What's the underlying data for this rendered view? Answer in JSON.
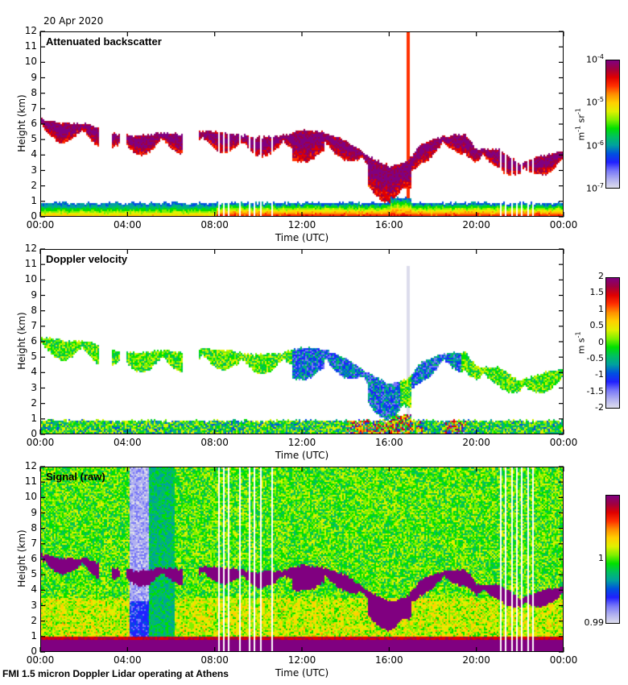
{
  "header": {
    "date": "20 Apr 2020"
  },
  "footer": {
    "caption": "FMI 1.5 micron Doppler Lidar operating at Athens"
  },
  "chart_data": [
    {
      "type": "heatmap",
      "title": "Attenuated backscatter",
      "xlabel": "Time (UTC)",
      "ylabel": "Height (km)",
      "xlim": [
        0,
        24
      ],
      "ylim": [
        0,
        12
      ],
      "xticks": [
        "00:00",
        "04:00",
        "08:00",
        "12:00",
        "16:00",
        "20:00",
        "00:00"
      ],
      "yticks": [
        "0",
        "1",
        "2",
        "3",
        "4",
        "5",
        "6",
        "7",
        "8",
        "9",
        "10",
        "11",
        "12"
      ],
      "colorbar": {
        "scale": "log",
        "range": [
          1e-07,
          0.0001
        ],
        "ticks": [
          {
            "base": "10",
            "exp": "-4"
          },
          {
            "base": "10",
            "exp": "-5"
          },
          {
            "base": "10",
            "exp": "-6"
          },
          {
            "base": "10",
            "exp": "-7"
          }
        ],
        "unit_base": "m",
        "unit_exp1": "-1",
        "unit_mid": " sr",
        "unit_exp2": "-1"
      },
      "cloud_top_km": [
        [
          0,
          6.4
        ],
        [
          1,
          6.1
        ],
        [
          2,
          6.1
        ],
        [
          3,
          5.6
        ],
        [
          3.5,
          5.4
        ],
        [
          4.5,
          5.3
        ],
        [
          5.5,
          5.5
        ],
        [
          6.5,
          5.4
        ],
        [
          7.5,
          5.6
        ],
        [
          8.5,
          5.5
        ],
        [
          9.8,
          5.2
        ],
        [
          11,
          5.3
        ],
        [
          12,
          5.7
        ],
        [
          13,
          5.5
        ],
        [
          14,
          5.0
        ],
        [
          15,
          4.0
        ],
        [
          16,
          3.3
        ],
        [
          16.8,
          3.6
        ],
        [
          17.5,
          4.8
        ],
        [
          18.5,
          5.3
        ],
        [
          19.5,
          5.4
        ],
        [
          20,
          4.4
        ],
        [
          21,
          4.4
        ],
        [
          22,
          3.5
        ],
        [
          23,
          4.0
        ],
        [
          24,
          4.3
        ]
      ],
      "boundary_layer_top_km": 1.0
    },
    {
      "type": "heatmap",
      "title": "Doppler velocity",
      "xlabel": "Time (UTC)",
      "ylabel": "Height (km)",
      "xlim": [
        0,
        24
      ],
      "ylim": [
        0,
        12
      ],
      "xticks": [
        "00:00",
        "04:00",
        "08:00",
        "12:00",
        "16:00",
        "20:00",
        "00:00"
      ],
      "yticks": [
        "0",
        "1",
        "2",
        "3",
        "4",
        "5",
        "6",
        "7",
        "8",
        "9",
        "10",
        "11",
        "12"
      ],
      "colorbar": {
        "scale": "linear",
        "range": [
          -2,
          2
        ],
        "ticks": [
          "2",
          "1.5",
          "1",
          "0.5",
          "0",
          "-0.5",
          "-1",
          "-1.5",
          "-2"
        ],
        "unit_base": "m s",
        "unit_exp1": "-1"
      }
    },
    {
      "type": "heatmap",
      "title": "Signal (raw)",
      "xlabel": "Time (UTC)",
      "ylabel": "Height (km)",
      "xlim": [
        0,
        24
      ],
      "ylim": [
        0,
        12
      ],
      "xticks": [
        "00:00",
        "04:00",
        "08:00",
        "12:00",
        "16:00",
        "20:00",
        "00:00"
      ],
      "yticks": [
        "0",
        "1",
        "2",
        "3",
        "4",
        "5",
        "6",
        "7",
        "8",
        "9",
        "10",
        "11",
        "12"
      ],
      "colorbar": {
        "scale": "linear",
        "range": [
          0.99,
          1.01
        ],
        "ticks": [
          "1",
          "0.99"
        ]
      }
    }
  ],
  "colors": {
    "palette": [
      "#dcdcec",
      "#b0b0f0",
      "#7878f8",
      "#2020ff",
      "#0050e0",
      "#00a0a0",
      "#00c060",
      "#00e000",
      "#80f000",
      "#e0f000",
      "#ffd000",
      "#ff9000",
      "#ff3000",
      "#e00000",
      "#a00040",
      "#800080"
    ]
  }
}
